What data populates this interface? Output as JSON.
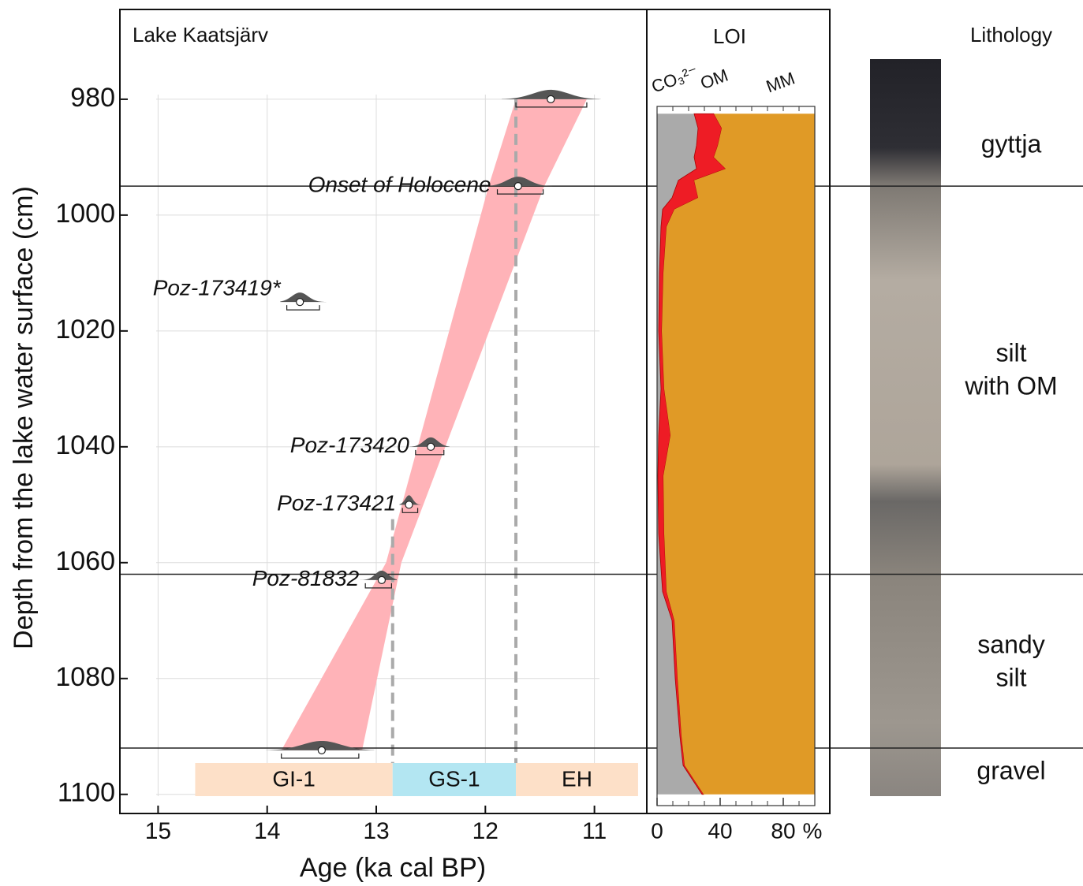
{
  "chart_data": [
    {
      "type": "age_depth",
      "title": "Lake Kaatsjärv",
      "x_label": "Age (ka cal BP)",
      "y_label": "Depth from the lake water surface (cm)",
      "xlim": [
        15.35,
        10.52
      ],
      "ylim": [
        964.5,
        1103.3
      ],
      "xticks": [
        15,
        14,
        13,
        12,
        11
      ],
      "yticks": [
        980,
        1000,
        1020,
        1040,
        1060,
        1080,
        1100
      ],
      "grid": true,
      "dates": [
        {
          "label": null,
          "depth": 980,
          "age": 11.4,
          "range": [
            11.72,
            11.07
          ]
        },
        {
          "label": "Onset of Holocene",
          "depth": 995,
          "age": 11.7,
          "range": [
            11.89,
            11.47
          ]
        },
        {
          "label": "Poz-173419*",
          "depth": 1015,
          "age": 13.7,
          "range": [
            13.82,
            13.52
          ]
        },
        {
          "label": "Poz-173420",
          "depth": 1040,
          "age": 12.5,
          "range": [
            12.64,
            12.38
          ]
        },
        {
          "label": "Poz-173421",
          "depth": 1050,
          "age": 12.7,
          "range": [
            12.76,
            12.62
          ]
        },
        {
          "label": "Poz-81832",
          "depth": 1063,
          "age": 12.95,
          "range": [
            13.1,
            12.86
          ]
        },
        {
          "label": null,
          "depth": 1092.4,
          "age": 13.5,
          "range": [
            13.87,
            13.16
          ]
        }
      ],
      "age_model": {
        "color": "#ffb3b8",
        "depth": [
          980,
          995,
          1060,
          1092.4
        ],
        "older": [
          11.72,
          11.97,
          12.91,
          13.87
        ],
        "younger": [
          11.07,
          11.46,
          12.77,
          13.13
        ]
      },
      "horizons": [
        995,
        1062,
        1092
      ],
      "zones": [
        {
          "label": "GI-1",
          "start": 14.66,
          "end": 12.85,
          "color": "#fde0c8",
          "boundary_top": 1052.5
        },
        {
          "label": "GS-1",
          "start": 12.85,
          "end": 11.72,
          "color": "#b3e6f2",
          "boundary_top": 980
        },
        {
          "label": "EH",
          "start": 11.72,
          "end": 10.6,
          "color": "#fde0c8"
        }
      ]
    },
    {
      "type": "stacked_area",
      "title": "LOI",
      "x_unit": "%",
      "xlim": [
        0,
        100
      ],
      "xticks": [
        0,
        40,
        80
      ],
      "minor_xticks": [
        0,
        10,
        20,
        30,
        40,
        50,
        60,
        70,
        80,
        90,
        100
      ],
      "depth": [
        982.5,
        985,
        988,
        990,
        992,
        994,
        997,
        999,
        1002,
        1010,
        1020,
        1030,
        1038,
        1045,
        1055,
        1065,
        1070,
        1080,
        1090,
        1095,
        1100
      ],
      "series": [
        {
          "name": "CO₃²⁻",
          "color": "#aaaaaa",
          "values": [
            23.5,
            26,
            25,
            23.5,
            25,
            13.5,
            9.5,
            3.5,
            2.5,
            1.5,
            1,
            2.5,
            1,
            0.5,
            1,
            3.5,
            9.5,
            11.5,
            14.5,
            16.5,
            28.5
          ]
        },
        {
          "name": "OM",
          "color": "#ee1c25",
          "values": [
            12.5,
            15,
            13.5,
            12.5,
            18.5,
            10,
            16.5,
            7.5,
            3.5,
            2.5,
            2,
            2,
            7.5,
            3.5,
            3.5,
            2.5,
            1.5,
            1.5,
            1,
            1,
            1
          ]
        },
        {
          "name": "MM",
          "color": "#e09a26",
          "values": [
            64,
            59,
            61.5,
            64,
            56.5,
            76.5,
            74,
            89,
            94,
            96,
            97,
            95.5,
            91.5,
            96,
            95.5,
            94,
            89,
            87,
            84.5,
            82.5,
            70.5
          ]
        }
      ]
    },
    {
      "type": "lithology",
      "title": "Lithology",
      "units": [
        {
          "lines": [
            "gyttja"
          ]
        },
        {
          "lines": [
            "silt",
            "with OM"
          ]
        },
        {
          "lines": [
            "sandy",
            "silt"
          ]
        },
        {
          "lines": [
            "gravel"
          ]
        }
      ]
    }
  ]
}
